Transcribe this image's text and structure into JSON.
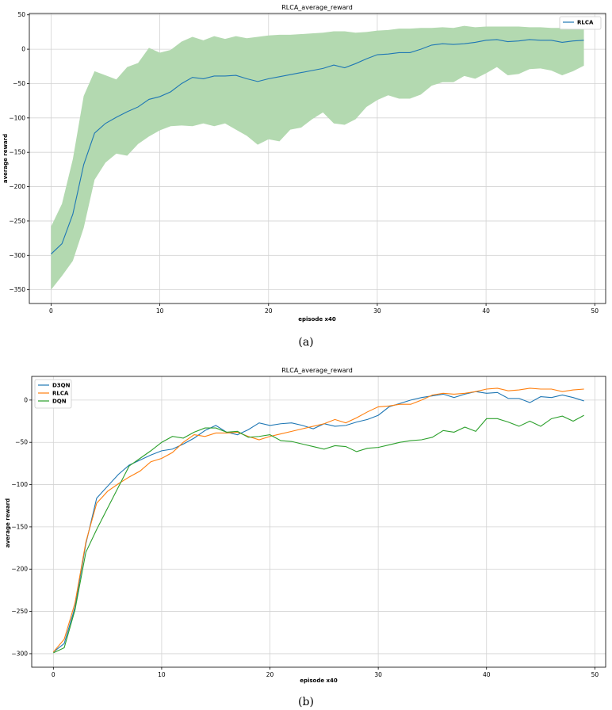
{
  "chart_data": [
    {
      "type": "line",
      "title": "RLCA_average_reward",
      "xlabel": "episode x40",
      "ylabel": "average reward",
      "caption": "(a)",
      "xlim": [
        -2,
        51
      ],
      "ylim": [
        -370,
        52
      ],
      "xticks": [
        0,
        10,
        20,
        30,
        40,
        50
      ],
      "yticks": [
        -350,
        -300,
        -250,
        -200,
        -150,
        -100,
        -50,
        0,
        50
      ],
      "grid": true,
      "legend": "top-right",
      "colors": {
        "line": "#1f77b4",
        "band": "#b3d9b0"
      },
      "series": [
        {
          "name": "RLCA",
          "x": [
            0,
            1,
            2,
            3,
            4,
            5,
            6,
            7,
            8,
            9,
            10,
            11,
            12,
            13,
            14,
            15,
            16,
            17,
            18,
            19,
            20,
            21,
            22,
            23,
            24,
            25,
            26,
            27,
            28,
            29,
            30,
            31,
            32,
            33,
            34,
            35,
            36,
            37,
            38,
            39,
            40,
            41,
            42,
            43,
            44,
            45,
            46,
            47,
            48,
            49
          ],
          "values": [
            -298,
            -283,
            -240,
            -168,
            -122,
            -108,
            -99,
            -91,
            -84,
            -73,
            -69,
            -62,
            -50,
            -41,
            -43,
            -39,
            -39,
            -38,
            -43,
            -47,
            -43,
            -40,
            -37,
            -34,
            -31,
            -28,
            -23,
            -27,
            -21,
            -14,
            -8,
            -7,
            -5,
            -5,
            0,
            6,
            8,
            7,
            8,
            10,
            13,
            14,
            11,
            12,
            14,
            13,
            13,
            10,
            12,
            13
          ],
          "band_upper": [
            -258,
            -225,
            -160,
            -68,
            -32,
            -38,
            -44,
            -26,
            -20,
            2,
            -5,
            -1,
            11,
            18,
            13,
            19,
            15,
            19,
            16,
            18,
            20,
            21,
            21,
            22,
            23,
            24,
            26,
            26,
            24,
            25,
            27,
            28,
            30,
            30,
            31,
            31,
            32,
            31,
            34,
            32,
            33,
            33,
            33,
            33,
            32,
            32,
            31,
            31,
            30,
            30
          ],
          "band_lower": [
            -350,
            -330,
            -308,
            -260,
            -190,
            -165,
            -152,
            -155,
            -138,
            -127,
            -118,
            -112,
            -111,
            -112,
            -108,
            -112,
            -108,
            -117,
            -126,
            -139,
            -131,
            -134,
            -117,
            -114,
            -102,
            -92,
            -108,
            -110,
            -102,
            -84,
            -74,
            -67,
            -72,
            -72,
            -66,
            -53,
            -48,
            -48,
            -39,
            -43,
            -35,
            -26,
            -38,
            -36,
            -29,
            -28,
            -31,
            -38,
            -32,
            -24
          ]
        }
      ]
    },
    {
      "type": "line",
      "title": "RLCA_average_reward",
      "xlabel": "episode x40",
      "ylabel": "average reward",
      "caption": "(b)",
      "xlim": [
        -2,
        51
      ],
      "ylim": [
        -316,
        28
      ],
      "xticks": [
        0,
        10,
        20,
        30,
        40,
        50
      ],
      "yticks": [
        -300,
        -250,
        -200,
        -150,
        -100,
        -50,
        0
      ],
      "grid": true,
      "legend": "top-left",
      "series": [
        {
          "name": "D3QN",
          "color": "#1f77b4",
          "x": [
            0,
            1,
            2,
            3,
            4,
            5,
            6,
            7,
            8,
            9,
            10,
            11,
            12,
            13,
            14,
            15,
            16,
            17,
            18,
            19,
            20,
            21,
            22,
            23,
            24,
            25,
            26,
            27,
            28,
            29,
            30,
            31,
            32,
            33,
            34,
            35,
            36,
            37,
            38,
            39,
            40,
            41,
            42,
            43,
            44,
            45,
            46,
            47,
            48,
            49
          ],
          "values": [
            -298,
            -288,
            -245,
            -170,
            -116,
            -102,
            -88,
            -77,
            -71,
            -65,
            -60,
            -58,
            -52,
            -45,
            -36,
            -30,
            -38,
            -41,
            -35,
            -27,
            -30,
            -28,
            -27,
            -30,
            -34,
            -28,
            -31,
            -30,
            -26,
            -23,
            -18,
            -8,
            -4,
            0,
            3,
            5,
            7,
            3,
            7,
            10,
            8,
            9,
            2,
            2,
            -3,
            4,
            3,
            6,
            3,
            -1
          ]
        },
        {
          "name": "RLCA",
          "color": "#ff7f0e",
          "x": [
            0,
            1,
            2,
            3,
            4,
            5,
            6,
            7,
            8,
            9,
            10,
            11,
            12,
            13,
            14,
            15,
            16,
            17,
            18,
            19,
            20,
            21,
            22,
            23,
            24,
            25,
            26,
            27,
            28,
            29,
            30,
            31,
            32,
            33,
            34,
            35,
            36,
            37,
            38,
            39,
            40,
            41,
            42,
            43,
            44,
            45,
            46,
            47,
            48,
            49
          ],
          "values": [
            -298,
            -283,
            -240,
            -168,
            -122,
            -108,
            -99,
            -91,
            -84,
            -73,
            -69,
            -62,
            -50,
            -41,
            -43,
            -39,
            -39,
            -38,
            -43,
            -47,
            -43,
            -40,
            -37,
            -34,
            -31,
            -28,
            -23,
            -27,
            -21,
            -14,
            -8,
            -7,
            -5,
            -5,
            0,
            6,
            8,
            7,
            8,
            10,
            13,
            14,
            11,
            12,
            14,
            13,
            13,
            10,
            12,
            13
          ]
        },
        {
          "name": "DQN",
          "color": "#2ca02c",
          "x": [
            0,
            1,
            2,
            3,
            4,
            5,
            6,
            7,
            8,
            9,
            10,
            11,
            12,
            13,
            14,
            15,
            16,
            17,
            18,
            19,
            20,
            21,
            22,
            23,
            24,
            25,
            26,
            27,
            28,
            29,
            30,
            31,
            32,
            33,
            34,
            35,
            36,
            37,
            38,
            39,
            40,
            41,
            42,
            43,
            44,
            45,
            46,
            47,
            48,
            49
          ],
          "values": [
            -299,
            -293,
            -248,
            -180,
            -153,
            -128,
            -103,
            -78,
            -69,
            -60,
            -50,
            -43,
            -45,
            -38,
            -33,
            -33,
            -38,
            -37,
            -44,
            -43,
            -41,
            -48,
            -49,
            -52,
            -55,
            -58,
            -54,
            -55,
            -61,
            -57,
            -56,
            -53,
            -50,
            -48,
            -47,
            -44,
            -36,
            -38,
            -32,
            -37,
            -22,
            -22,
            -26,
            -31,
            -25,
            -31,
            -22,
            -19,
            -25,
            -18
          ]
        }
      ]
    }
  ]
}
